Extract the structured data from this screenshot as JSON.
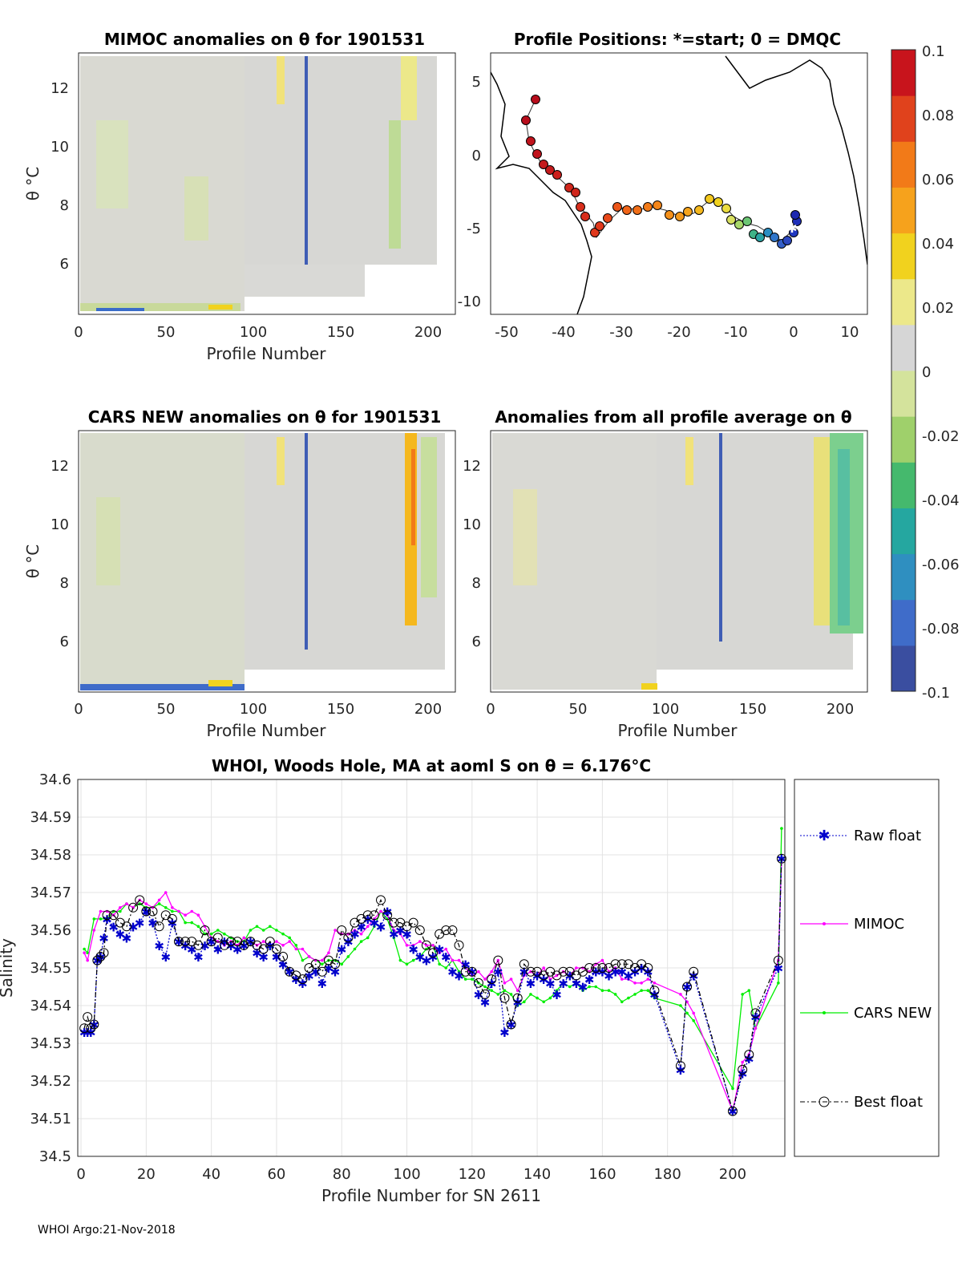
{
  "footer": "WHOI Argo:21-Nov-2018",
  "colorbar": {
    "ticks": [
      "0.1",
      "0.08",
      "0.06",
      "0.04",
      "0.02",
      "0",
      "-0.02",
      "-0.04",
      "-0.06",
      "-0.08",
      "-0.1"
    ],
    "colors": [
      "#3a4ea0",
      "#3f6cc9",
      "#2f8fc0",
      "#25a7a0",
      "#45b96d",
      "#9fd06b",
      "#d4e39c",
      "#d6d6d6",
      "#ece88a",
      "#f1d21e",
      "#f6a21c",
      "#f27a18",
      "#e0421c",
      "#c8141c"
    ]
  },
  "panels": [
    {
      "id": "mimoc",
      "title": "MIMOC anomalies on θ  for 1901531",
      "xlabel": "Profile Number",
      "ylabel": "θ °C",
      "xticks": [
        "0",
        "50",
        "100",
        "150",
        "200"
      ],
      "yticks": [
        "12",
        "10",
        "8",
        "6"
      ]
    },
    {
      "id": "positions",
      "title": "Profile Positions: *=start; 0 = DMQC",
      "xticks": [
        "-50",
        "-40",
        "-30",
        "-20",
        "-10",
        "0",
        "10"
      ],
      "yticks": [
        "5",
        "0",
        "-5",
        "-10"
      ]
    },
    {
      "id": "cars",
      "title": "CARS NEW anomalies on θ for 1901531",
      "xlabel": "Profile Number",
      "ylabel": "θ °C",
      "xticks": [
        "0",
        "50",
        "100",
        "150",
        "200"
      ],
      "yticks": [
        "12",
        "10",
        "8",
        "6"
      ]
    },
    {
      "id": "allavg",
      "title": "Anomalies from all profile average on θ",
      "xlabel": "Profile Number",
      "xticks": [
        "0",
        "50",
        "100",
        "150",
        "200"
      ],
      "yticks": [
        "12",
        "10",
        "8",
        "6"
      ]
    }
  ],
  "chart_data": {
    "type": "line",
    "title": "WHOI, Woods Hole, MA at aoml S on θ = 6.176°C",
    "xlabel": "Profile Number for SN 2611",
    "ylabel": "Salinity",
    "xlim": [
      -1,
      216
    ],
    "ylim": [
      34.5,
      34.6
    ],
    "xticks": [
      0,
      20,
      40,
      60,
      80,
      100,
      120,
      140,
      160,
      180,
      200
    ],
    "yticks": [
      34.5,
      34.51,
      34.52,
      34.53,
      34.54,
      34.55,
      34.56,
      34.57,
      34.58,
      34.59,
      34.6
    ],
    "ytick_labels": [
      "34.5",
      "34.51",
      "34.52",
      "34.53",
      "34.54",
      "34.55",
      "34.56",
      "34.57",
      "34.58",
      "34.59",
      "34.6"
    ],
    "legend": [
      "Raw float",
      "MIMOC",
      "CARS NEW",
      "Best float"
    ],
    "series": [
      {
        "name": "Raw float",
        "color": "#0000cc",
        "x": [
          1,
          2,
          3,
          4,
          5,
          6,
          7,
          8,
          10,
          12,
          14,
          16,
          18,
          20,
          22,
          24,
          26,
          28,
          30,
          32,
          34,
          36,
          38,
          40,
          42,
          44,
          46,
          48,
          50,
          52,
          54,
          56,
          58,
          60,
          62,
          64,
          66,
          68,
          70,
          72,
          74,
          76,
          78,
          80,
          82,
          84,
          86,
          88,
          90,
          92,
          94,
          96,
          98,
          100,
          102,
          104,
          106,
          108,
          110,
          112,
          114,
          116,
          118,
          120,
          122,
          124,
          126,
          128,
          130,
          132,
          134,
          136,
          138,
          140,
          142,
          144,
          146,
          148,
          150,
          152,
          154,
          156,
          158,
          160,
          162,
          164,
          166,
          168,
          170,
          172,
          174,
          176,
          184,
          186,
          188,
          200,
          203,
          205,
          207,
          214,
          215
        ],
        "y": [
          34.533,
          34.533,
          34.533,
          34.535,
          34.552,
          34.553,
          34.558,
          34.563,
          34.561,
          34.559,
          34.558,
          34.561,
          34.562,
          34.565,
          34.562,
          34.556,
          34.553,
          34.562,
          34.557,
          34.556,
          34.555,
          34.553,
          34.556,
          34.557,
          34.555,
          34.557,
          34.556,
          34.555,
          34.556,
          34.557,
          34.554,
          34.553,
          34.556,
          34.553,
          34.551,
          34.549,
          34.547,
          34.546,
          34.548,
          34.549,
          34.546,
          34.55,
          34.549,
          34.555,
          34.557,
          34.559,
          34.561,
          34.563,
          34.562,
          34.561,
          34.565,
          34.559,
          34.56,
          34.559,
          34.555,
          34.553,
          34.552,
          34.553,
          34.555,
          34.553,
          34.549,
          34.548,
          34.551,
          34.549,
          34.543,
          34.541,
          34.546,
          34.549,
          34.533,
          34.535,
          34.541,
          34.549,
          34.546,
          34.548,
          34.547,
          34.546,
          34.543,
          34.546,
          34.548,
          34.546,
          34.545,
          34.547,
          34.549,
          34.549,
          34.548,
          34.549,
          34.549,
          34.548,
          34.549,
          34.55,
          34.549,
          34.543,
          34.523,
          34.545,
          34.548,
          34.512,
          34.522,
          34.526,
          34.537,
          34.55,
          34.579
        ]
      },
      {
        "name": "MIMOC",
        "color": "#ff00ff",
        "x": [
          1,
          2,
          4,
          6,
          8,
          10,
          12,
          14,
          16,
          18,
          20,
          22,
          24,
          26,
          28,
          30,
          32,
          34,
          36,
          38,
          40,
          42,
          44,
          46,
          48,
          50,
          52,
          54,
          56,
          58,
          60,
          62,
          64,
          66,
          68,
          70,
          72,
          74,
          76,
          78,
          80,
          82,
          84,
          86,
          88,
          90,
          92,
          94,
          96,
          98,
          100,
          102,
          104,
          106,
          108,
          110,
          112,
          114,
          116,
          118,
          120,
          122,
          124,
          126,
          128,
          130,
          132,
          134,
          136,
          138,
          140,
          142,
          144,
          146,
          148,
          150,
          152,
          154,
          156,
          158,
          160,
          162,
          164,
          166,
          168,
          170,
          172,
          174,
          176,
          184,
          186,
          188,
          200,
          203,
          205,
          207,
          214,
          215
        ],
        "y": [
          34.554,
          34.552,
          34.56,
          34.565,
          34.565,
          34.564,
          34.566,
          34.567,
          34.566,
          34.568,
          34.567,
          34.566,
          34.568,
          34.57,
          34.566,
          34.565,
          34.564,
          34.565,
          34.564,
          34.561,
          34.558,
          34.557,
          34.556,
          34.557,
          34.556,
          34.558,
          34.557,
          34.556,
          34.557,
          34.556,
          34.557,
          34.556,
          34.557,
          34.555,
          34.555,
          34.553,
          34.552,
          34.552,
          34.554,
          34.56,
          34.559,
          34.559,
          34.56,
          34.559,
          34.561,
          34.563,
          34.565,
          34.564,
          34.56,
          34.559,
          34.556,
          34.556,
          34.557,
          34.556,
          34.556,
          34.554,
          34.555,
          34.552,
          34.552,
          34.55,
          34.548,
          34.549,
          34.547,
          34.549,
          34.552,
          34.546,
          34.547,
          34.544,
          34.548,
          34.549,
          34.548,
          34.55,
          34.547,
          34.548,
          34.549,
          34.548,
          34.55,
          34.55,
          34.549,
          34.551,
          34.552,
          34.549,
          34.55,
          34.547,
          34.547,
          34.546,
          34.546,
          34.547,
          34.546,
          34.543,
          34.541,
          34.538,
          34.512,
          34.525,
          34.527,
          34.534,
          34.552,
          34.579
        ]
      },
      {
        "name": "CARS NEW",
        "color": "#00ee00",
        "x": [
          1,
          2,
          4,
          6,
          8,
          10,
          12,
          14,
          16,
          18,
          20,
          22,
          24,
          26,
          28,
          30,
          32,
          34,
          36,
          38,
          40,
          42,
          44,
          46,
          48,
          50,
          52,
          54,
          56,
          58,
          60,
          62,
          64,
          66,
          68,
          70,
          72,
          74,
          76,
          78,
          80,
          82,
          84,
          86,
          88,
          90,
          92,
          94,
          96,
          98,
          100,
          102,
          104,
          106,
          108,
          110,
          112,
          114,
          116,
          118,
          120,
          122,
          124,
          126,
          128,
          130,
          132,
          134,
          136,
          138,
          140,
          142,
          144,
          146,
          148,
          150,
          152,
          154,
          156,
          158,
          160,
          162,
          164,
          166,
          168,
          170,
          172,
          174,
          176,
          184,
          186,
          188,
          200,
          203,
          205,
          207,
          214,
          215
        ],
        "y": [
          34.555,
          34.554,
          34.563,
          34.563,
          34.563,
          34.565,
          34.565,
          34.567,
          34.566,
          34.567,
          34.566,
          34.566,
          34.567,
          34.566,
          34.565,
          34.565,
          34.562,
          34.562,
          34.561,
          34.559,
          34.559,
          34.56,
          34.559,
          34.558,
          34.557,
          34.557,
          34.56,
          34.561,
          34.56,
          34.561,
          34.56,
          34.559,
          34.558,
          34.556,
          34.552,
          34.553,
          34.552,
          34.551,
          34.552,
          34.552,
          34.551,
          34.553,
          34.555,
          34.557,
          34.558,
          34.561,
          34.565,
          34.563,
          34.558,
          34.552,
          34.551,
          34.552,
          34.553,
          34.555,
          34.556,
          34.551,
          34.55,
          34.552,
          34.549,
          34.547,
          34.547,
          34.546,
          34.545,
          34.544,
          34.543,
          34.544,
          34.543,
          34.54,
          34.541,
          34.543,
          34.542,
          34.541,
          34.542,
          34.544,
          34.546,
          34.545,
          34.546,
          34.544,
          34.545,
          34.545,
          34.544,
          34.544,
          34.543,
          34.541,
          34.542,
          34.543,
          34.544,
          34.544,
          34.542,
          34.54,
          34.538,
          34.536,
          34.518,
          34.543,
          34.544,
          34.534,
          34.546,
          34.587
        ]
      },
      {
        "name": "Best float",
        "color": "#000000",
        "x": [
          1,
          2,
          3,
          4,
          5,
          6,
          7,
          8,
          10,
          12,
          14,
          16,
          18,
          20,
          22,
          24,
          26,
          28,
          30,
          32,
          34,
          36,
          38,
          40,
          42,
          44,
          46,
          48,
          50,
          52,
          54,
          56,
          58,
          60,
          62,
          64,
          66,
          68,
          70,
          72,
          74,
          76,
          78,
          80,
          82,
          84,
          86,
          88,
          90,
          92,
          94,
          96,
          98,
          100,
          102,
          104,
          106,
          108,
          110,
          112,
          114,
          116,
          118,
          120,
          122,
          124,
          126,
          128,
          130,
          132,
          134,
          136,
          138,
          140,
          142,
          144,
          146,
          148,
          150,
          152,
          154,
          156,
          158,
          160,
          162,
          164,
          166,
          168,
          170,
          172,
          174,
          176,
          184,
          186,
          188,
          200,
          203,
          205,
          207,
          214,
          215
        ],
        "y": [
          34.534,
          34.537,
          34.534,
          34.535,
          34.552,
          34.553,
          34.554,
          34.564,
          34.564,
          34.562,
          34.561,
          34.566,
          34.568,
          34.565,
          34.565,
          34.561,
          34.564,
          34.563,
          34.557,
          34.557,
          34.557,
          34.556,
          34.56,
          34.557,
          34.558,
          34.556,
          34.557,
          34.557,
          34.556,
          34.557,
          34.556,
          34.555,
          34.557,
          34.555,
          34.553,
          34.549,
          34.548,
          34.547,
          34.55,
          34.551,
          34.549,
          34.552,
          34.551,
          34.56,
          34.558,
          34.562,
          34.563,
          34.564,
          34.564,
          34.568,
          34.564,
          34.562,
          34.562,
          34.561,
          34.562,
          34.56,
          34.556,
          34.554,
          34.559,
          34.56,
          34.56,
          34.556,
          34.549,
          34.549,
          34.546,
          34.543,
          34.547,
          34.552,
          34.542,
          34.535,
          34.542,
          34.551,
          34.549,
          34.549,
          34.548,
          34.549,
          34.548,
          34.549,
          34.549,
          34.548,
          34.549,
          34.55,
          34.55,
          34.55,
          34.55,
          34.551,
          34.551,
          34.551,
          34.55,
          34.551,
          34.55,
          34.544,
          34.524,
          34.545,
          34.549,
          34.512,
          34.523,
          34.527,
          34.538,
          34.552,
          34.579
        ]
      }
    ]
  }
}
